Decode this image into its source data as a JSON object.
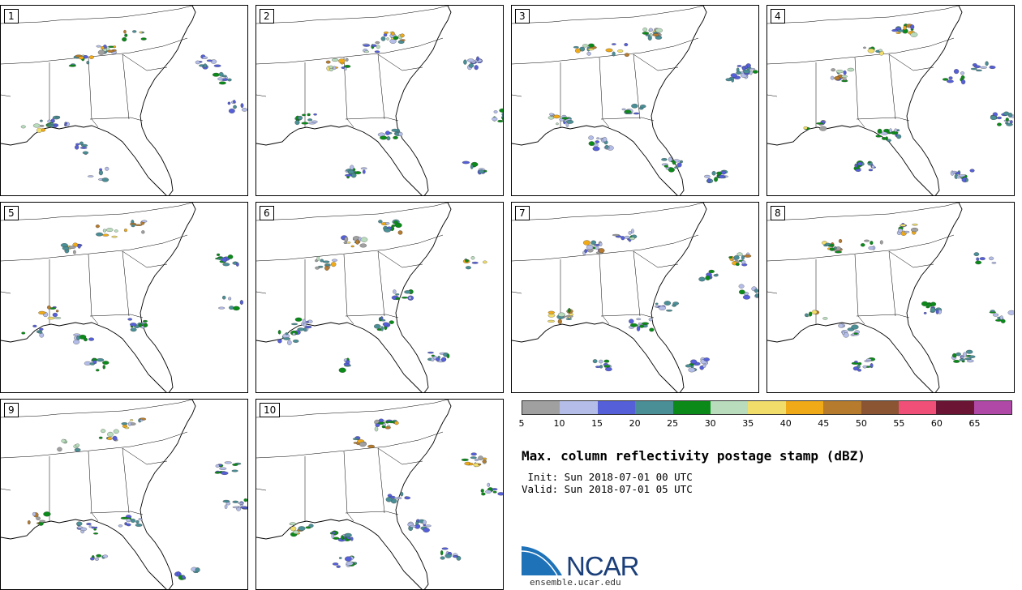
{
  "panels": [
    {
      "label": "1"
    },
    {
      "label": "2"
    },
    {
      "label": "3"
    },
    {
      "label": "4"
    },
    {
      "label": "5"
    },
    {
      "label": "6"
    },
    {
      "label": "7"
    },
    {
      "label": "8"
    },
    {
      "label": "9"
    },
    {
      "label": "10"
    }
  ],
  "colorbar": {
    "ticks": [
      "5",
      "10",
      "15",
      "20",
      "25",
      "30",
      "35",
      "40",
      "45",
      "50",
      "55",
      "60",
      "65"
    ],
    "colors": [
      "#a0a0a0",
      "#b3bde8",
      "#5560d8",
      "#4a8e96",
      "#0b8a1a",
      "#b8dcbc",
      "#f0dd6a",
      "#f0aa18",
      "#b67b2c",
      "#8b5433",
      "#f05078",
      "#6b1433",
      "#b048a8"
    ]
  },
  "title": "Max. column reflectivity postage stamp (dBZ)",
  "init": " Init: Sun 2018-07-01 00 UTC",
  "valid": "Valid: Sun 2018-07-01 05 UTC",
  "logo": {
    "text": "NCAR",
    "url": "ensemble.ucar.edu"
  }
}
